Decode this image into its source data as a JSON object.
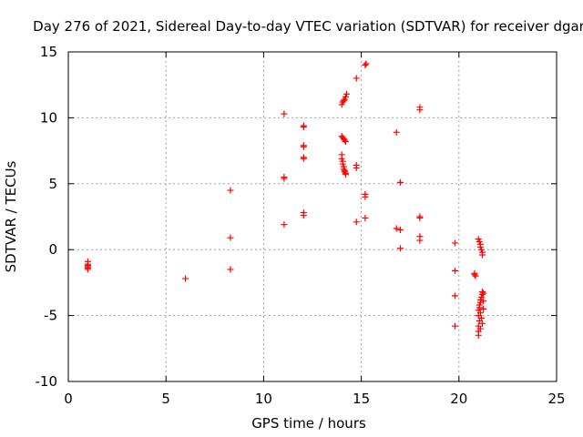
{
  "chart_data": {
    "type": "scatter",
    "title": "Day 276 of 2021, Sidereal Day-to-day VTEC variation (SDTVAR) for receiver dgar",
    "xlabel": "GPS time / hours",
    "ylabel": "SDTVAR / TECUs",
    "xlim": [
      0,
      25
    ],
    "ylim": [
      -10,
      15
    ],
    "xticks": [
      0,
      5,
      10,
      15,
      20,
      25
    ],
    "yticks": [
      -10,
      -5,
      0,
      5,
      10,
      15
    ],
    "grid": true,
    "marker": "+",
    "color": "#ff0000",
    "series": [
      {
        "name": "SDTVAR",
        "points": [
          [
            1.0,
            -0.9
          ],
          [
            1.0,
            -1.1
          ],
          [
            1.0,
            -1.2
          ],
          [
            1.0,
            -1.3
          ],
          [
            1.0,
            -1.4
          ],
          [
            1.0,
            -1.5
          ],
          [
            6.0,
            -2.2
          ],
          [
            8.3,
            4.5
          ],
          [
            8.3,
            0.9
          ],
          [
            8.3,
            -1.5
          ],
          [
            11.05,
            10.3
          ],
          [
            11.05,
            5.5
          ],
          [
            11.05,
            5.4
          ],
          [
            11.05,
            1.9
          ],
          [
            12.05,
            9.4
          ],
          [
            12.05,
            9.3
          ],
          [
            12.05,
            7.9
          ],
          [
            12.05,
            7.8
          ],
          [
            12.05,
            7.0
          ],
          [
            12.05,
            6.9
          ],
          [
            12.05,
            2.8
          ],
          [
            12.05,
            2.6
          ],
          [
            14.0,
            11.0
          ],
          [
            14.05,
            11.2
          ],
          [
            14.1,
            11.3
          ],
          [
            14.15,
            11.4
          ],
          [
            14.2,
            11.6
          ],
          [
            14.25,
            11.8
          ],
          [
            14.0,
            8.6
          ],
          [
            14.05,
            8.5
          ],
          [
            14.1,
            8.4
          ],
          [
            14.15,
            8.3
          ],
          [
            14.2,
            8.2
          ],
          [
            14.0,
            7.2
          ],
          [
            14.0,
            6.9
          ],
          [
            14.05,
            6.7
          ],
          [
            14.05,
            6.5
          ],
          [
            14.1,
            6.3
          ],
          [
            14.1,
            6.1
          ],
          [
            14.15,
            6.0
          ],
          [
            14.15,
            5.9
          ],
          [
            14.2,
            5.8
          ],
          [
            14.2,
            5.7
          ],
          [
            14.75,
            13.0
          ],
          [
            14.75,
            6.4
          ],
          [
            14.75,
            6.2
          ],
          [
            14.75,
            2.1
          ],
          [
            15.2,
            14.0
          ],
          [
            15.25,
            14.1
          ],
          [
            15.2,
            4.2
          ],
          [
            15.2,
            4.0
          ],
          [
            15.2,
            2.4
          ],
          [
            16.8,
            8.9
          ],
          [
            16.8,
            1.6
          ],
          [
            17.0,
            5.1
          ],
          [
            17.0,
            1.5
          ],
          [
            17.0,
            0.1
          ],
          [
            18.0,
            10.8
          ],
          [
            18.0,
            10.6
          ],
          [
            18.0,
            2.5
          ],
          [
            18.0,
            2.4
          ],
          [
            18.0,
            1.0
          ],
          [
            18.0,
            0.7
          ],
          [
            19.8,
            0.5
          ],
          [
            19.8,
            -1.6
          ],
          [
            19.8,
            -3.5
          ],
          [
            19.8,
            -5.8
          ],
          [
            20.8,
            -1.8
          ],
          [
            20.8,
            -1.9
          ],
          [
            20.85,
            -2.0
          ],
          [
            21.0,
            0.8
          ],
          [
            21.05,
            0.6
          ],
          [
            21.1,
            0.4
          ],
          [
            21.1,
            0.2
          ],
          [
            21.15,
            0.0
          ],
          [
            21.2,
            -0.2
          ],
          [
            21.2,
            -0.4
          ],
          [
            21.2,
            -3.2
          ],
          [
            21.2,
            -3.4
          ],
          [
            21.15,
            -3.6
          ],
          [
            21.1,
            -3.8
          ],
          [
            21.1,
            -4.0
          ],
          [
            21.05,
            -4.2
          ],
          [
            21.05,
            -4.4
          ],
          [
            21.0,
            -4.6
          ],
          [
            21.1,
            -4.8
          ],
          [
            21.0,
            -5.0
          ],
          [
            21.15,
            -5.2
          ],
          [
            21.05,
            -5.4
          ],
          [
            21.2,
            -5.6
          ],
          [
            21.0,
            -5.8
          ],
          [
            21.1,
            -6.0
          ],
          [
            21.0,
            -6.2
          ],
          [
            21.0,
            -6.5
          ],
          [
            21.25,
            -4.5
          ],
          [
            21.25,
            -3.9
          ],
          [
            21.25,
            -3.3
          ]
        ]
      }
    ]
  }
}
